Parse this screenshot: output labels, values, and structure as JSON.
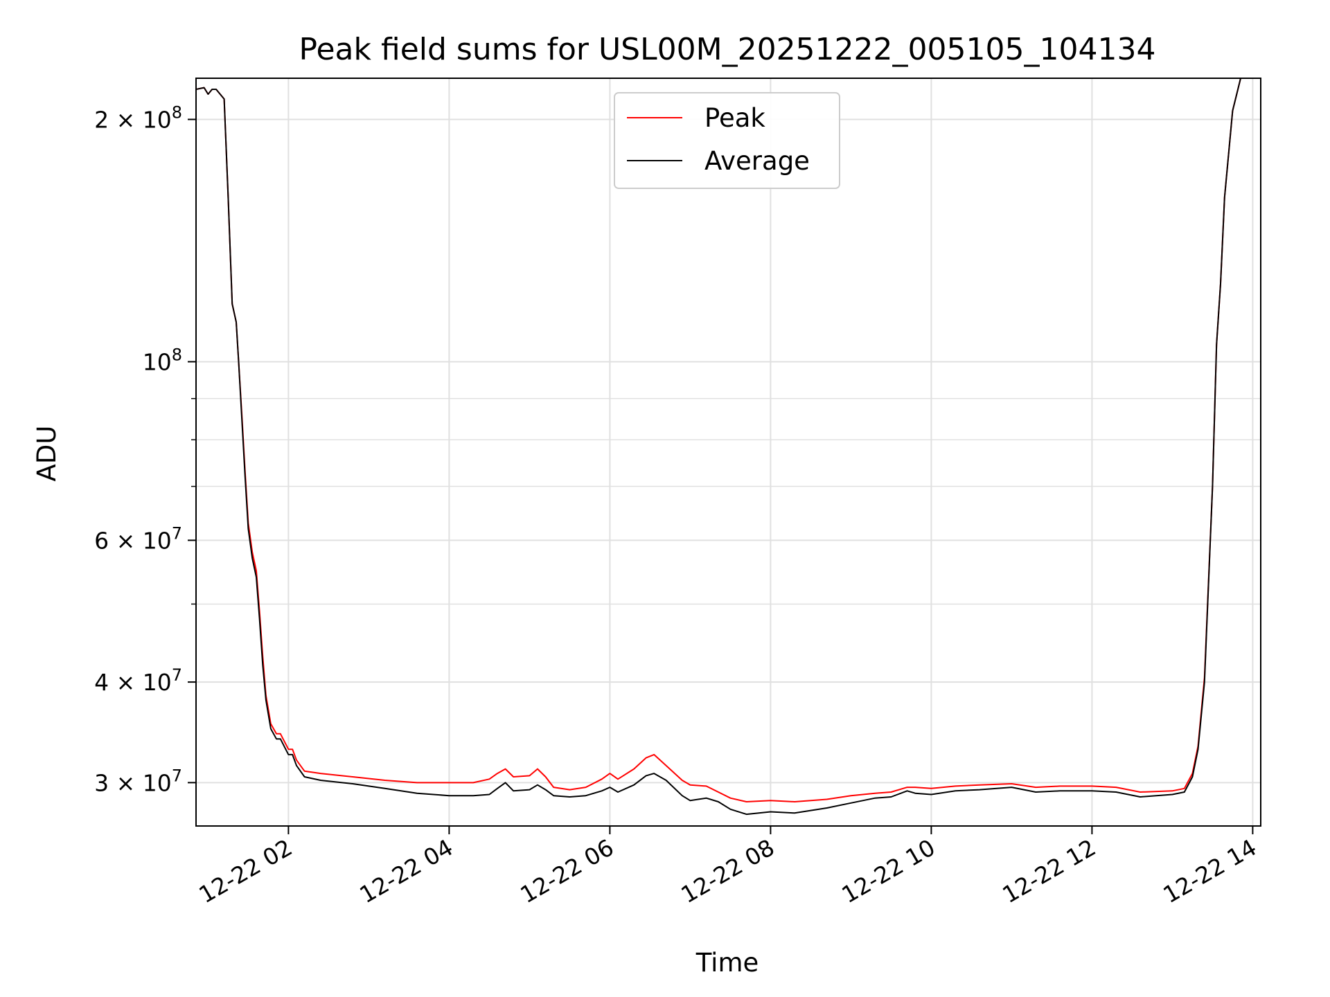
{
  "chart_data": {
    "type": "line",
    "title": "Peak field sums for USL00M_20251222_005105_104134",
    "xlabel": "Time",
    "ylabel": "ADU",
    "x_unit": "hours since 2025-12-22 00:00",
    "xlim": [
      0.85,
      14.1
    ],
    "ylim": [
      26500000,
      225000000
    ],
    "y_scale": "log",
    "grid": true,
    "legend_position": "upper center",
    "colors": {
      "Peak": "#ff0000",
      "Average": "#000000",
      "grid": "#e0e0e0"
    },
    "x_ticks": [
      {
        "value": 2,
        "label": "12-22 02"
      },
      {
        "value": 4,
        "label": "12-22 04"
      },
      {
        "value": 6,
        "label": "12-22 06"
      },
      {
        "value": 8,
        "label": "12-22 08"
      },
      {
        "value": 10,
        "label": "12-22 10"
      },
      {
        "value": 12,
        "label": "12-22 12"
      },
      {
        "value": 14,
        "label": "12-22 14"
      }
    ],
    "y_major_ticks": [
      {
        "value": 30000000,
        "mantissa": "3",
        "exponent": "7"
      },
      {
        "value": 40000000,
        "mantissa": "4",
        "exponent": "7"
      },
      {
        "value": 60000000,
        "mantissa": "6",
        "exponent": "7"
      },
      {
        "value": 100000000,
        "mantissa": "",
        "exponent": "8"
      },
      {
        "value": 200000000,
        "mantissa": "2",
        "exponent": "8"
      }
    ],
    "y_minor_ticks": [
      50000000,
      70000000,
      80000000,
      90000000
    ],
    "series": [
      {
        "name": "Average",
        "x": [
          0.85,
          0.95,
          1.0,
          1.05,
          1.1,
          1.2,
          1.25,
          1.3,
          1.35,
          1.38,
          1.42,
          1.46,
          1.5,
          1.55,
          1.6,
          1.64,
          1.68,
          1.72,
          1.78,
          1.85,
          1.9,
          2.0,
          2.05,
          2.1,
          2.2,
          2.4,
          2.8,
          3.2,
          3.6,
          4.0,
          4.3,
          4.5,
          4.6,
          4.7,
          4.8,
          5.0,
          5.1,
          5.2,
          5.3,
          5.5,
          5.7,
          5.9,
          6.0,
          6.1,
          6.3,
          6.45,
          6.55,
          6.7,
          6.9,
          7.0,
          7.2,
          7.35,
          7.5,
          7.7,
          8.0,
          8.3,
          8.7,
          9.0,
          9.3,
          9.5,
          9.7,
          9.8,
          10.0,
          10.3,
          10.6,
          11.0,
          11.3,
          11.6,
          12.0,
          12.3,
          12.6,
          13.0,
          13.15,
          13.25,
          13.32,
          13.4,
          13.5,
          13.55,
          13.6,
          13.65,
          13.75,
          13.85,
          13.9
        ],
        "y": [
          218000000,
          219000000,
          215000000,
          218000000,
          218000000,
          212000000,
          160000000,
          118000000,
          112000000,
          100000000,
          85000000,
          72000000,
          62000000,
          57000000,
          54000000,
          48000000,
          42000000,
          38000000,
          35000000,
          34000000,
          34000000,
          32500000,
          32500000,
          31500000,
          30500000,
          30200000,
          29900000,
          29500000,
          29100000,
          28900000,
          28900000,
          29000000,
          29500000,
          30000000,
          29300000,
          29400000,
          29800000,
          29400000,
          28900000,
          28800000,
          28900000,
          29300000,
          29600000,
          29200000,
          29800000,
          30600000,
          30800000,
          30200000,
          28900000,
          28500000,
          28700000,
          28400000,
          27800000,
          27400000,
          27600000,
          27500000,
          27900000,
          28300000,
          28700000,
          28800000,
          29300000,
          29100000,
          29000000,
          29300000,
          29400000,
          29600000,
          29200000,
          29300000,
          29300000,
          29200000,
          28800000,
          29000000,
          29200000,
          30500000,
          33000000,
          40000000,
          70000000,
          105000000,
          125000000,
          160000000,
          205000000,
          225000000,
          226000000
        ]
      },
      {
        "name": "Peak",
        "x": [
          0.85,
          0.95,
          1.0,
          1.05,
          1.1,
          1.2,
          1.25,
          1.3,
          1.35,
          1.38,
          1.42,
          1.46,
          1.5,
          1.55,
          1.6,
          1.64,
          1.68,
          1.72,
          1.78,
          1.85,
          1.9,
          2.0,
          2.05,
          2.1,
          2.2,
          2.4,
          2.8,
          3.2,
          3.6,
          4.0,
          4.3,
          4.5,
          4.6,
          4.7,
          4.8,
          5.0,
          5.1,
          5.2,
          5.3,
          5.5,
          5.7,
          5.9,
          6.0,
          6.1,
          6.3,
          6.45,
          6.55,
          6.7,
          6.9,
          7.0,
          7.2,
          7.35,
          7.5,
          7.7,
          8.0,
          8.3,
          8.7,
          9.0,
          9.3,
          9.5,
          9.7,
          9.8,
          10.0,
          10.3,
          10.6,
          11.0,
          11.3,
          11.6,
          12.0,
          12.3,
          12.6,
          13.0,
          13.15,
          13.25,
          13.32,
          13.4,
          13.5,
          13.55,
          13.6,
          13.65,
          13.75,
          13.85,
          13.9
        ],
        "y": [
          218000000,
          219000000,
          215000000,
          218000000,
          218000000,
          212000000,
          160000000,
          118000000,
          112000000,
          100000000,
          86000000,
          73000000,
          63000000,
          58000000,
          55000000,
          49000000,
          43000000,
          38500000,
          35500000,
          34500000,
          34500000,
          33000000,
          33000000,
          32000000,
          31000000,
          30800000,
          30500000,
          30200000,
          30000000,
          30000000,
          30000000,
          30300000,
          30800000,
          31200000,
          30500000,
          30600000,
          31200000,
          30500000,
          29600000,
          29400000,
          29600000,
          30300000,
          30800000,
          30300000,
          31200000,
          32200000,
          32500000,
          31500000,
          30200000,
          29800000,
          29700000,
          29200000,
          28700000,
          28400000,
          28500000,
          28400000,
          28600000,
          28900000,
          29100000,
          29200000,
          29600000,
          29600000,
          29500000,
          29700000,
          29800000,
          29900000,
          29600000,
          29700000,
          29700000,
          29600000,
          29200000,
          29300000,
          29500000,
          30800000,
          33300000,
          40500000,
          70000000,
          105000000,
          125000000,
          160000000,
          205000000,
          225000000,
          226000000
        ]
      }
    ]
  }
}
